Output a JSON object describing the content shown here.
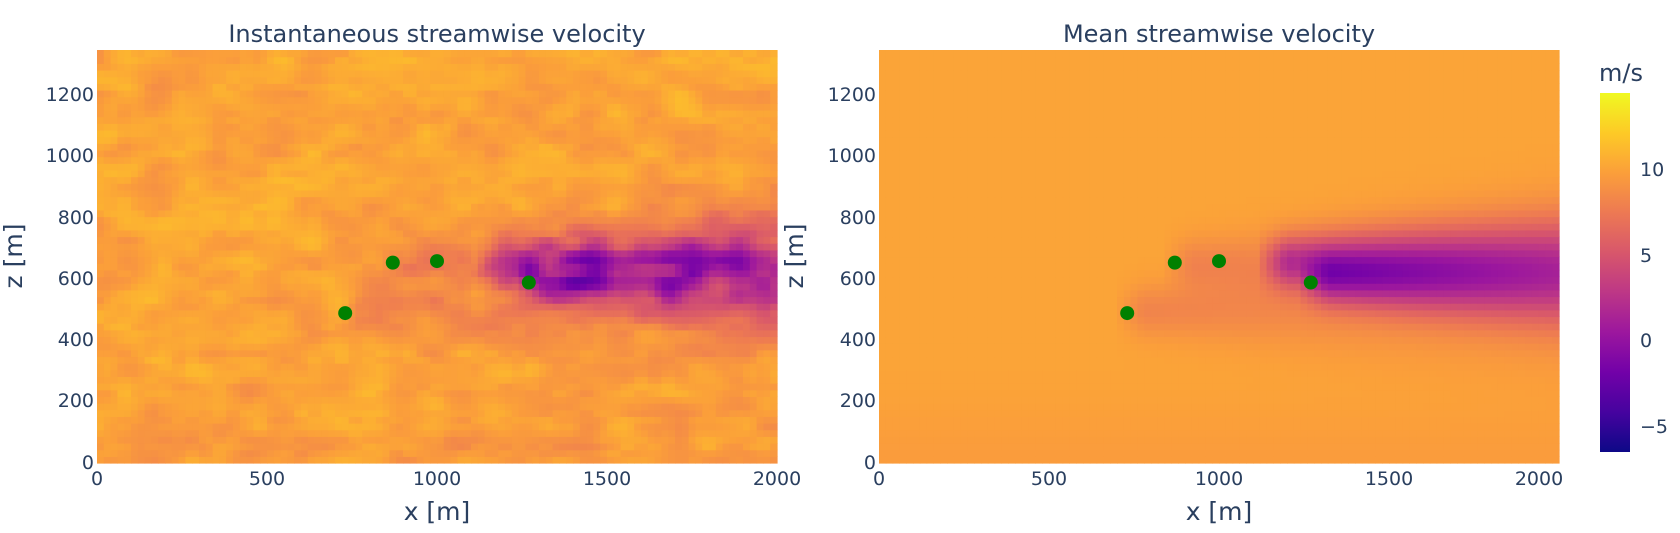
{
  "chart_data": [
    {
      "type": "heatmap",
      "title": "Instantaneous streamwise velocity",
      "xlabel": "x [m]",
      "ylabel": "z [m]",
      "xlim": [
        0,
        2000
      ],
      "ylim": [
        0,
        1350
      ],
      "x_ticks": [
        "0",
        "500",
        "1000",
        "1500",
        "2000"
      ],
      "y_ticks": [
        "0",
        "200",
        "400",
        "600",
        "800",
        "1000",
        "1200"
      ],
      "field": "instantaneous",
      "turbines": {
        "x": [
          730,
          870,
          1000,
          1270
        ],
        "z": [
          490,
          655,
          660,
          590
        ],
        "color": "#008000"
      }
    },
    {
      "type": "heatmap",
      "title": "Mean streamwise velocity",
      "xlabel": "x [m]",
      "ylabel": "z [m]",
      "xlim": [
        0,
        2000
      ],
      "ylim": [
        0,
        1350
      ],
      "x_ticks": [
        "0",
        "500",
        "1000",
        "1500",
        "2000"
      ],
      "y_ticks": [
        "0",
        "200",
        "400",
        "600",
        "800",
        "1000",
        "1200"
      ],
      "field": "mean",
      "turbines": {
        "x": [
          730,
          870,
          1000,
          1270
        ],
        "z": [
          490,
          655,
          660,
          590
        ],
        "color": "#008000"
      }
    }
  ],
  "colorbar": {
    "title": "m/s",
    "colorscale": "Plasma",
    "range": [
      -7,
      14
    ],
    "tick_values": [
      -5,
      0,
      5,
      10
    ],
    "tick_labels": [
      "−5",
      "0",
      "5",
      "10"
    ]
  },
  "colors": {
    "plasma": [
      "#0d0887",
      "#46039f",
      "#7201a8",
      "#9c179e",
      "#bd3786",
      "#d8576b",
      "#ed7953",
      "#fb9f3a",
      "#fdca26",
      "#f0f921"
    ],
    "text": "#2a3f5f"
  }
}
